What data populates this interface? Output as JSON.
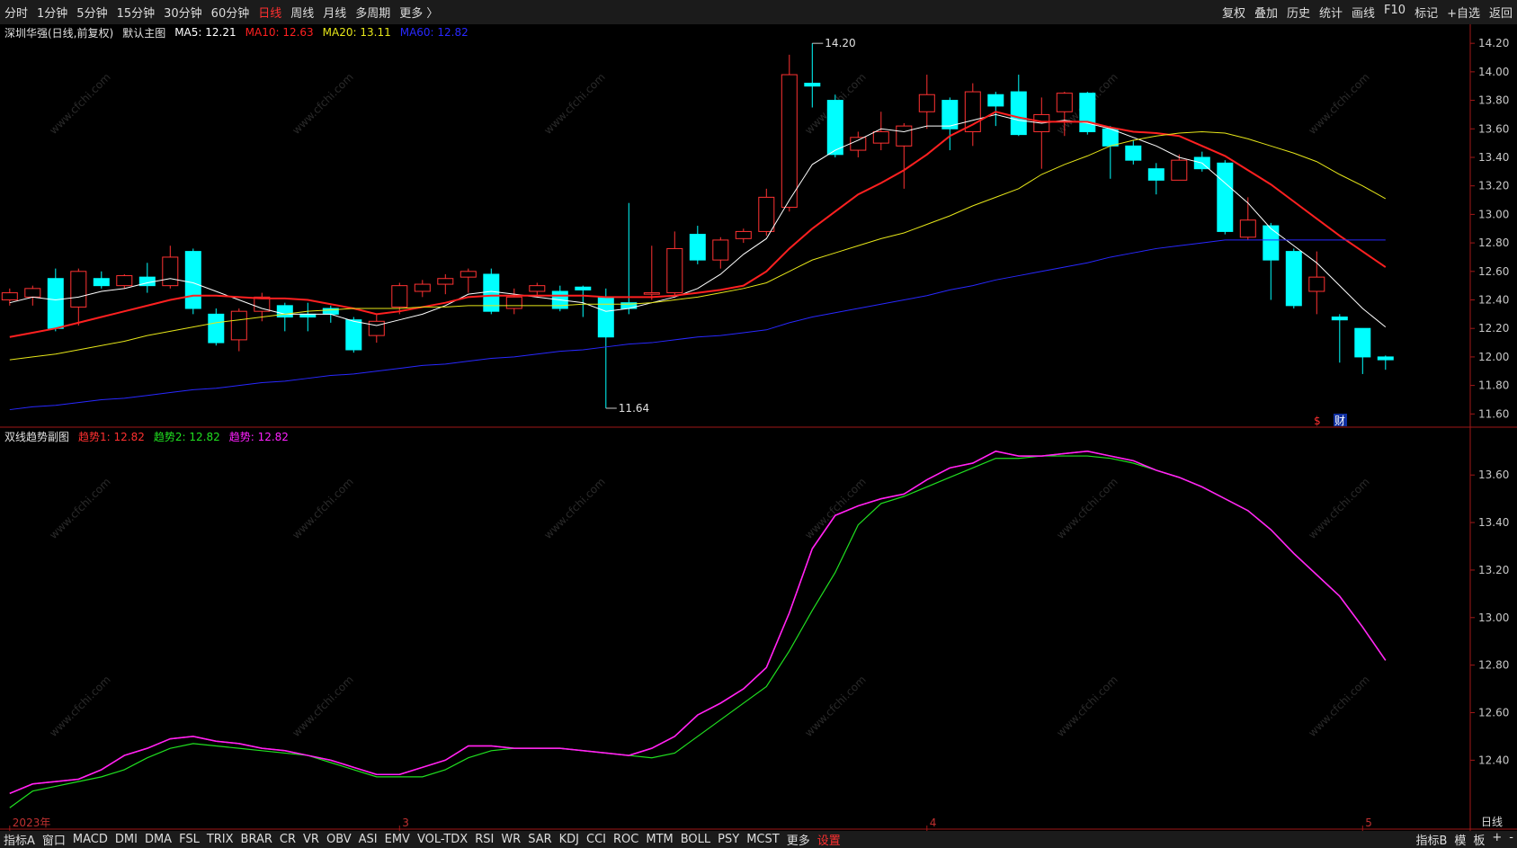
{
  "toolbar": {
    "left": [
      "分时",
      "1分钟",
      "5分钟",
      "15分钟",
      "30分钟",
      "60分钟",
      "日线",
      "周线",
      "月线",
      "多周期",
      "更多 〉"
    ],
    "active": 6,
    "right": [
      "复权",
      "叠加",
      "历史",
      "统计",
      "画线",
      "F10",
      "标记",
      "+自选",
      "返回"
    ]
  },
  "watermark": "www.cfchi.com",
  "chart_data": [
    {
      "type": "candlestick",
      "title": "深圳华强(日线,前复权)",
      "subtitle": "默认主图",
      "period_label": "日线",
      "categories": [
        "2023年",
        null,
        null,
        null,
        null,
        null,
        null,
        null,
        null,
        null,
        null,
        null,
        null,
        null,
        null,
        null,
        null,
        "3",
        null,
        null,
        null,
        null,
        null,
        null,
        null,
        null,
        null,
        null,
        null,
        null,
        null,
        null,
        null,
        null,
        null,
        null,
        null,
        null,
        null,
        null,
        "4",
        null,
        null,
        null,
        null,
        null,
        null,
        null,
        null,
        null,
        null,
        null,
        null,
        null,
        null,
        null,
        null,
        null,
        null,
        "5",
        null
      ],
      "open": [
        12.4,
        12.42,
        12.55,
        12.35,
        12.55,
        12.5,
        12.56,
        12.5,
        12.74,
        12.3,
        12.12,
        12.32,
        12.36,
        12.3,
        12.34,
        12.26,
        12.15,
        12.35,
        12.46,
        12.51,
        12.56,
        12.58,
        12.34,
        12.46,
        12.46,
        12.49,
        12.42,
        12.38,
        12.44,
        12.45,
        12.86,
        12.68,
        12.83,
        12.88,
        13.05,
        13.92,
        13.8,
        13.45,
        13.5,
        13.48,
        13.72,
        13.8,
        13.58,
        13.84,
        13.86,
        13.58,
        13.72,
        13.85,
        13.6,
        13.48,
        13.32,
        13.24,
        13.4,
        13.36,
        12.84,
        12.92,
        12.74,
        12.46,
        12.28,
        12.2,
        12.0
      ],
      "high": [
        12.48,
        12.5,
        12.62,
        12.62,
        12.6,
        12.58,
        12.66,
        12.78,
        12.76,
        12.34,
        12.34,
        12.45,
        12.38,
        12.38,
        12.36,
        12.28,
        12.3,
        12.52,
        12.54,
        12.58,
        12.62,
        12.62,
        12.48,
        12.52,
        12.5,
        12.5,
        12.48,
        13.08,
        12.78,
        12.88,
        12.92,
        12.84,
        12.9,
        13.18,
        14.12,
        14.2,
        13.84,
        13.58,
        13.72,
        13.64,
        13.98,
        13.82,
        13.92,
        13.86,
        13.98,
        13.82,
        13.86,
        13.86,
        13.62,
        13.52,
        13.36,
        13.42,
        13.44,
        13.38,
        13.12,
        12.94,
        12.76,
        12.74,
        12.3,
        12.2,
        12.01
      ],
      "low": [
        12.36,
        12.36,
        12.18,
        12.22,
        12.48,
        12.48,
        12.45,
        12.48,
        12.3,
        12.08,
        12.04,
        12.25,
        12.18,
        12.18,
        12.24,
        12.03,
        12.1,
        12.3,
        12.42,
        12.44,
        12.45,
        12.3,
        12.3,
        12.42,
        12.32,
        12.28,
        11.64,
        12.3,
        12.4,
        12.43,
        12.65,
        12.62,
        12.8,
        12.85,
        13.02,
        13.75,
        13.4,
        13.4,
        13.45,
        13.18,
        13.6,
        13.45,
        13.48,
        13.62,
        13.55,
        13.32,
        13.55,
        13.56,
        13.25,
        13.35,
        13.14,
        13.24,
        13.3,
        12.86,
        12.82,
        12.4,
        12.34,
        12.3,
        11.96,
        11.88,
        11.91
      ],
      "close": [
        12.45,
        12.48,
        12.2,
        12.6,
        12.5,
        12.57,
        12.5,
        12.7,
        12.34,
        12.1,
        12.32,
        12.42,
        12.28,
        12.28,
        12.3,
        12.05,
        12.25,
        12.5,
        12.51,
        12.55,
        12.6,
        12.32,
        12.42,
        12.5,
        12.34,
        12.47,
        12.14,
        12.34,
        12.45,
        12.76,
        12.68,
        12.82,
        12.88,
        13.12,
        13.98,
        13.9,
        13.42,
        13.54,
        13.58,
        13.62,
        13.84,
        13.6,
        13.86,
        13.76,
        13.56,
        13.7,
        13.85,
        13.58,
        13.48,
        13.38,
        13.24,
        13.38,
        13.32,
        12.88,
        12.96,
        12.68,
        12.36,
        12.56,
        12.26,
        12.0,
        11.98
      ],
      "up_color": "#ff3232",
      "down_color": "#00ffff",
      "max_label": "14.20",
      "min_label": "11.64",
      "markers": [
        "$",
        "财"
      ],
      "series": [
        {
          "name": "MA5: 12.21",
          "color": "#ffffff",
          "width": 1,
          "values": [
            12.38,
            12.42,
            12.4,
            12.42,
            12.46,
            12.48,
            12.52,
            12.55,
            12.52,
            12.46,
            12.4,
            12.34,
            12.3,
            12.3,
            12.3,
            12.25,
            12.22,
            12.26,
            12.3,
            12.36,
            12.44,
            12.46,
            12.44,
            12.42,
            12.4,
            12.38,
            12.32,
            12.34,
            12.38,
            12.42,
            12.48,
            12.58,
            12.72,
            12.83,
            13.1,
            13.35,
            13.45,
            13.52,
            13.6,
            13.58,
            13.62,
            13.62,
            13.66,
            13.7,
            13.66,
            13.64,
            13.66,
            13.64,
            13.6,
            13.54,
            13.48,
            13.4,
            13.36,
            13.22,
            13.08,
            12.9,
            12.78,
            12.66,
            12.5,
            12.34,
            12.21
          ]
        },
        {
          "name": "MA10: 12.63",
          "color": "#ff2020",
          "width": 2,
          "values": [
            12.14,
            12.17,
            12.2,
            12.24,
            12.28,
            12.32,
            12.36,
            12.4,
            12.43,
            12.43,
            12.42,
            12.41,
            12.41,
            12.4,
            12.37,
            12.34,
            12.3,
            12.32,
            12.35,
            12.38,
            12.42,
            12.43,
            12.43,
            12.43,
            12.43,
            12.43,
            12.42,
            12.42,
            12.42,
            12.43,
            12.45,
            12.47,
            12.5,
            12.6,
            12.76,
            12.9,
            13.02,
            13.14,
            13.22,
            13.31,
            13.42,
            13.55,
            13.63,
            13.72,
            13.68,
            13.65,
            13.65,
            13.65,
            13.61,
            13.58,
            13.57,
            13.55,
            13.48,
            13.41,
            13.31,
            13.21,
            13.09,
            12.97,
            12.85,
            12.74,
            12.63
          ]
        },
        {
          "name": "MA20: 13.11",
          "color": "#e6e619",
          "width": 1,
          "values": [
            11.98,
            12.0,
            12.02,
            12.05,
            12.08,
            12.11,
            12.15,
            12.18,
            12.21,
            12.24,
            12.26,
            12.28,
            12.3,
            12.32,
            12.33,
            12.34,
            12.34,
            12.34,
            12.35,
            12.35,
            12.36,
            12.36,
            12.36,
            12.36,
            12.36,
            12.37,
            12.37,
            12.37,
            12.38,
            12.4,
            12.42,
            12.45,
            12.48,
            12.52,
            12.6,
            12.68,
            12.73,
            12.78,
            12.83,
            12.87,
            12.93,
            12.99,
            13.06,
            13.12,
            13.18,
            13.28,
            13.35,
            13.41,
            13.48,
            13.52,
            13.55,
            13.57,
            13.58,
            13.57,
            13.53,
            13.48,
            13.43,
            13.37,
            13.28,
            13.2,
            13.11
          ]
        },
        {
          "name": "MA60: 12.82",
          "color": "#2828ff",
          "width": 1,
          "values": [
            11.63,
            11.65,
            11.66,
            11.68,
            11.7,
            11.71,
            11.73,
            11.75,
            11.77,
            11.78,
            11.8,
            11.82,
            11.83,
            11.85,
            11.87,
            11.88,
            11.9,
            11.92,
            11.94,
            11.95,
            11.97,
            11.99,
            12.0,
            12.02,
            12.04,
            12.05,
            12.07,
            12.09,
            12.1,
            12.12,
            12.14,
            12.15,
            12.17,
            12.19,
            12.24,
            12.28,
            12.31,
            12.34,
            12.37,
            12.4,
            12.43,
            12.47,
            12.5,
            12.54,
            12.57,
            12.6,
            12.63,
            12.66,
            12.7,
            12.73,
            12.76,
            12.78,
            12.8,
            12.82,
            12.82,
            12.82,
            12.82,
            12.82,
            12.82,
            12.82,
            12.82
          ]
        }
      ],
      "ylim": [
        11.52,
        14.22
      ],
      "yticks": [
        {
          "value": 11.6,
          "label": "11.60"
        },
        {
          "value": 11.8,
          "label": "11.80"
        },
        {
          "value": 12.0,
          "label": "12.00"
        },
        {
          "value": 12.2,
          "label": "12.20"
        },
        {
          "value": 12.4,
          "label": "12.40"
        },
        {
          "value": 12.6,
          "label": "12.60"
        },
        {
          "value": 12.8,
          "label": "12.80"
        },
        {
          "value": 13.0,
          "label": "13.00"
        },
        {
          "value": 13.2,
          "label": "13.20"
        },
        {
          "value": 13.4,
          "label": "13.40"
        },
        {
          "value": 13.6,
          "label": "13.60"
        },
        {
          "value": 13.8,
          "label": "13.80"
        },
        {
          "value": 14.0,
          "label": "14.00"
        },
        {
          "value": 14.2,
          "label": "14.20"
        }
      ]
    },
    {
      "type": "line",
      "title": "双线趋势副图",
      "series": [
        {
          "name": "趋势1: 12.82",
          "color": "#ff3030",
          "width": 1.5,
          "values": [
            12.26,
            12.3,
            12.31,
            12.32,
            12.36,
            12.42,
            12.45,
            12.49,
            12.5,
            12.48,
            12.47,
            12.45,
            12.44,
            12.42,
            12.4,
            12.37,
            12.34,
            12.34,
            12.37,
            12.4,
            12.46,
            12.46,
            12.45,
            12.45,
            12.45,
            12.44,
            12.43,
            12.42,
            12.45,
            12.5,
            12.59,
            12.64,
            12.7,
            12.79,
            13.02,
            13.29,
            13.43,
            13.47,
            13.5,
            13.52,
            13.58,
            13.63,
            13.65,
            13.7,
            13.68,
            13.68,
            13.69,
            13.7,
            13.68,
            13.66,
            13.62,
            13.59,
            13.55,
            13.5,
            13.45,
            13.37,
            13.27,
            13.18,
            13.09,
            12.96,
            12.82
          ]
        },
        {
          "name": "趋势2: 12.82",
          "color": "#20e020",
          "width": 1.2,
          "values": [
            12.2,
            12.27,
            12.29,
            12.31,
            12.33,
            12.36,
            12.41,
            12.45,
            12.47,
            12.46,
            12.45,
            12.44,
            12.43,
            12.42,
            12.39,
            12.36,
            12.33,
            12.33,
            12.33,
            12.36,
            12.41,
            12.44,
            12.45,
            12.45,
            12.45,
            12.44,
            12.43,
            12.42,
            12.41,
            12.43,
            12.5,
            12.57,
            12.64,
            12.71,
            12.86,
            13.03,
            13.19,
            13.39,
            13.48,
            13.51,
            13.55,
            13.59,
            13.63,
            13.67,
            13.67,
            13.68,
            13.68,
            13.68,
            13.67,
            13.65,
            13.62,
            13.59,
            13.55,
            13.5,
            13.45,
            13.37,
            13.27,
            13.18,
            13.09,
            12.96,
            12.82
          ]
        },
        {
          "name": "趋势: 12.82",
          "color": "#ff20ff",
          "width": 1.5,
          "values": [
            12.26,
            12.3,
            12.31,
            12.32,
            12.36,
            12.42,
            12.45,
            12.49,
            12.5,
            12.48,
            12.47,
            12.45,
            12.44,
            12.42,
            12.4,
            12.37,
            12.34,
            12.34,
            12.37,
            12.4,
            12.46,
            12.46,
            12.45,
            12.45,
            12.45,
            12.44,
            12.43,
            12.42,
            12.45,
            12.5,
            12.59,
            12.64,
            12.7,
            12.79,
            13.02,
            13.29,
            13.43,
            13.47,
            13.5,
            13.52,
            13.58,
            13.63,
            13.65,
            13.7,
            13.68,
            13.68,
            13.69,
            13.7,
            13.68,
            13.66,
            13.62,
            13.59,
            13.55,
            13.5,
            13.45,
            13.37,
            13.27,
            13.18,
            13.09,
            12.96,
            12.82
          ]
        }
      ],
      "ylim": [
        12.11,
        13.79
      ],
      "yticks": [
        {
          "value": 12.4,
          "label": "12.40"
        },
        {
          "value": 12.6,
          "label": "12.60"
        },
        {
          "value": 12.8,
          "label": "12.80"
        },
        {
          "value": 13.0,
          "label": "13.00"
        },
        {
          "value": 13.2,
          "label": "13.20"
        },
        {
          "value": 13.4,
          "label": "13.40"
        },
        {
          "value": 13.6,
          "label": "13.60"
        }
      ]
    }
  ],
  "bottom_bar": {
    "tabs": [
      "指标A",
      "窗口",
      "MACD",
      "DMI",
      "DMA",
      "FSL",
      "TRIX",
      "BRAR",
      "CR",
      "VR",
      "OBV",
      "ASI",
      "EMV",
      "VOL-TDX",
      "RSI",
      "WR",
      "SAR",
      "KDJ",
      "CCI",
      "ROC",
      "MTM",
      "BOLL",
      "PSY",
      "MCST",
      "更多",
      "设置"
    ],
    "accent": 25,
    "right": [
      "指标B",
      "模",
      "板",
      "+",
      "-"
    ]
  }
}
